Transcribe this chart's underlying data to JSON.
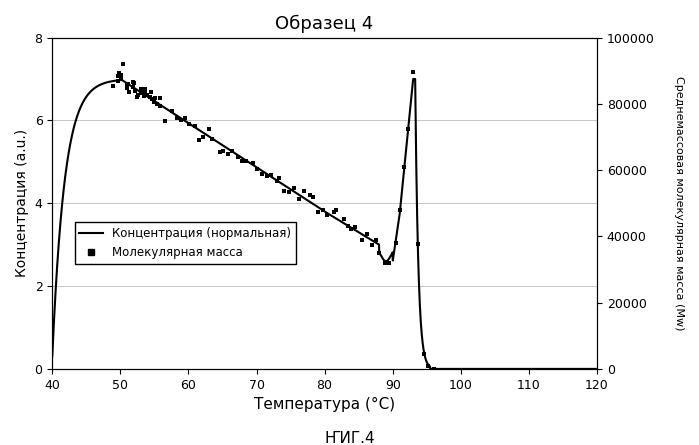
{
  "title": "Образец 4",
  "subtitle": "ҤИГ.4",
  "xlabel": "Температура (°C)",
  "ylabel_left": "Концентрация (a.u.)",
  "ylabel_right": "Среднемассовая молекулярная масса (Mw)",
  "legend_conc": "Концентрация (нормальная)",
  "legend_mw": "Молекулярная масса",
  "xlim": [
    40,
    120
  ],
  "ylim_left": [
    0.0,
    8.0
  ],
  "ylim_right": [
    0,
    100000
  ],
  "yticks_left": [
    0.0,
    2.0,
    4.0,
    6.0,
    8.0
  ],
  "yticks_right": [
    0,
    20000,
    40000,
    60000,
    80000,
    100000
  ],
  "xticks": [
    40,
    50,
    60,
    70,
    80,
    90,
    100,
    110,
    120
  ],
  "bg_color": "#ffffff",
  "line_color": "#000000",
  "scatter_color": "#000000",
  "grid_color": "#bbbbbb"
}
